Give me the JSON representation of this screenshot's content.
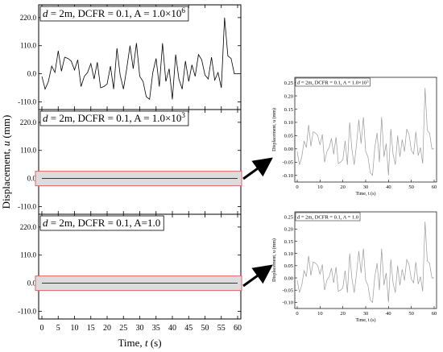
{
  "figure": {
    "x_axis_label": "Time, t (s)",
    "y_axis_label": "Displacement, u (mm)",
    "x_ticks": [
      "0",
      "5",
      "10",
      "15",
      "20",
      "25",
      "30",
      "35",
      "40",
      "45",
      "50",
      "55",
      "60"
    ],
    "y_ticks": [
      "220.0",
      "110.0",
      "0.0",
      "-110.0"
    ],
    "zoom_arrows": 2
  },
  "chart_data": [
    {
      "type": "line",
      "title": "d = 2m, DCFR = 0.1, A = 1.0×10^6",
      "xlabel": "Time, t (s)",
      "ylabel": "Displacement, u (mm)",
      "xlim": [
        0,
        60
      ],
      "ylim": [
        -140,
        270
      ],
      "series": [
        {
          "x": [
            0,
            1,
            2,
            3,
            4,
            5,
            6,
            7,
            8,
            9,
            10,
            11,
            12,
            13,
            14,
            15,
            16,
            17,
            18,
            19,
            20,
            21,
            22,
            23,
            24,
            25,
            26,
            27,
            28,
            29,
            30,
            31,
            32,
            33,
            34,
            35,
            36,
            37,
            38,
            39,
            40,
            41,
            42,
            43,
            44,
            45,
            46,
            47,
            48,
            49,
            50,
            51,
            52,
            53,
            54,
            55,
            56,
            57,
            58,
            59,
            60
          ],
          "y": [
            -10,
            -60,
            -30,
            30,
            5,
            90,
            10,
            65,
            60,
            50,
            15,
            55,
            -50,
            -10,
            5,
            40,
            -20,
            45,
            -55,
            -50,
            -40,
            30,
            -60,
            100,
            -5,
            -60,
            20,
            110,
            20,
            120,
            -10,
            -30,
            -90,
            -100,
            5,
            60,
            -50,
            120,
            -30,
            20,
            -100,
            75,
            -20,
            -60,
            50,
            -30,
            35,
            -10,
            75,
            55,
            -5,
            -20,
            65,
            -25,
            5,
            -55,
            220,
            70,
            60,
            0,
            0
          ]
        }
      ]
    },
    {
      "type": "line",
      "title": "d = 2m, DCFR = 0.1, A = 1.0×10^3",
      "xlabel": "Time, t (s)",
      "ylabel": "Displacement, u (mm)",
      "xlim": [
        0,
        60
      ],
      "ylim": [
        -140,
        270
      ],
      "series": [
        {
          "x": [
            0,
            60
          ],
          "y": [
            0,
            0
          ]
        }
      ]
    },
    {
      "type": "line",
      "title": "d = 2m, DCFR = 0.1, A=1.0",
      "xlabel": "Time, t (s)",
      "ylabel": "Displacement, u (mm)",
      "xlim": [
        0,
        60
      ],
      "ylim": [
        -140,
        270
      ],
      "series": [
        {
          "x": [
            0,
            60
          ],
          "y": [
            0,
            0
          ]
        }
      ]
    },
    {
      "type": "line",
      "title": "d = 2m, DCFR = 0.1, A = 1.0×10^3",
      "xlabel": "Time, t (s)",
      "ylabel": "Displacement, u (mm)",
      "xlim": [
        0,
        60
      ],
      "ylim": [
        -0.125,
        0.27
      ],
      "x_ticks": [
        "0",
        "10",
        "20",
        "30",
        "40",
        "50",
        "60"
      ],
      "y_ticks": [
        "0.25",
        "0.20",
        "0.15",
        "0.10",
        "0.05",
        "0.00",
        "-0.05",
        "-0.10"
      ],
      "series": [
        {
          "x": [
            0,
            1,
            2,
            3,
            4,
            5,
            6,
            7,
            8,
            9,
            10,
            11,
            12,
            13,
            14,
            15,
            16,
            17,
            18,
            19,
            20,
            21,
            22,
            23,
            24,
            25,
            26,
            27,
            28,
            29,
            30,
            31,
            32,
            33,
            34,
            35,
            36,
            37,
            38,
            39,
            40,
            41,
            42,
            43,
            44,
            45,
            46,
            47,
            48,
            49,
            50,
            51,
            52,
            53,
            54,
            55,
            56,
            57,
            58,
            59,
            60
          ],
          "y": [
            -0.01,
            -0.06,
            -0.03,
            0.03,
            0.005,
            0.09,
            0.01,
            0.065,
            0.06,
            0.05,
            0.015,
            0.055,
            -0.05,
            -0.01,
            0.005,
            0.04,
            -0.02,
            0.045,
            -0.055,
            -0.05,
            -0.04,
            0.03,
            -0.06,
            0.1,
            -0.005,
            -0.06,
            0.02,
            0.11,
            0.02,
            0.12,
            -0.01,
            -0.03,
            -0.09,
            -0.1,
            0.005,
            0.06,
            -0.05,
            0.12,
            -0.03,
            0.02,
            -0.1,
            0.075,
            -0.02,
            -0.06,
            0.05,
            -0.03,
            0.035,
            -0.01,
            0.075,
            0.055,
            -0.005,
            -0.02,
            0.065,
            -0.025,
            0.005,
            -0.055,
            0.23,
            0.07,
            0.06,
            0,
            0
          ]
        }
      ]
    },
    {
      "type": "line",
      "title": "d = 2m, DCFR = 0.1, A = 1.0",
      "xlabel": "Time, t (s)",
      "ylabel": "Displacement, u (mm)",
      "xlim": [
        0,
        60
      ],
      "ylim": [
        -0.125,
        0.27
      ],
      "x_ticks": [
        "0",
        "10",
        "20",
        "30",
        "40",
        "50",
        "60"
      ],
      "y_ticks": [
        "0.25",
        "0.20",
        "0.15",
        "0.10",
        "0.05",
        "0.00",
        "-0.05",
        "-0.10"
      ],
      "series": [
        {
          "x": [
            0,
            1,
            2,
            3,
            4,
            5,
            6,
            7,
            8,
            9,
            10,
            11,
            12,
            13,
            14,
            15,
            16,
            17,
            18,
            19,
            20,
            21,
            22,
            23,
            24,
            25,
            26,
            27,
            28,
            29,
            30,
            31,
            32,
            33,
            34,
            35,
            36,
            37,
            38,
            39,
            40,
            41,
            42,
            43,
            44,
            45,
            46,
            47,
            48,
            49,
            50,
            51,
            52,
            53,
            54,
            55,
            56,
            57,
            58,
            59,
            60
          ],
          "y": [
            -0.01,
            -0.06,
            -0.03,
            0.03,
            0.005,
            0.09,
            0.01,
            0.065,
            0.06,
            0.05,
            0.015,
            0.055,
            -0.05,
            -0.01,
            0.005,
            0.04,
            -0.02,
            0.045,
            -0.055,
            -0.05,
            -0.04,
            0.03,
            -0.06,
            0.1,
            -0.005,
            -0.06,
            0.02,
            0.11,
            0.02,
            0.12,
            -0.01,
            -0.03,
            -0.09,
            -0.1,
            0.005,
            0.06,
            -0.05,
            0.12,
            -0.03,
            0.02,
            -0.1,
            0.075,
            -0.02,
            -0.06,
            0.05,
            -0.03,
            0.035,
            -0.01,
            0.075,
            0.055,
            -0.005,
            -0.02,
            0.065,
            -0.025,
            0.005,
            -0.055,
            0.23,
            0.07,
            0.06,
            0,
            0
          ]
        }
      ]
    }
  ],
  "colors": {
    "highlight_stroke": "#e06666",
    "highlight_fill": "#dcdcdc",
    "inset_line": "#9a9a9a"
  }
}
